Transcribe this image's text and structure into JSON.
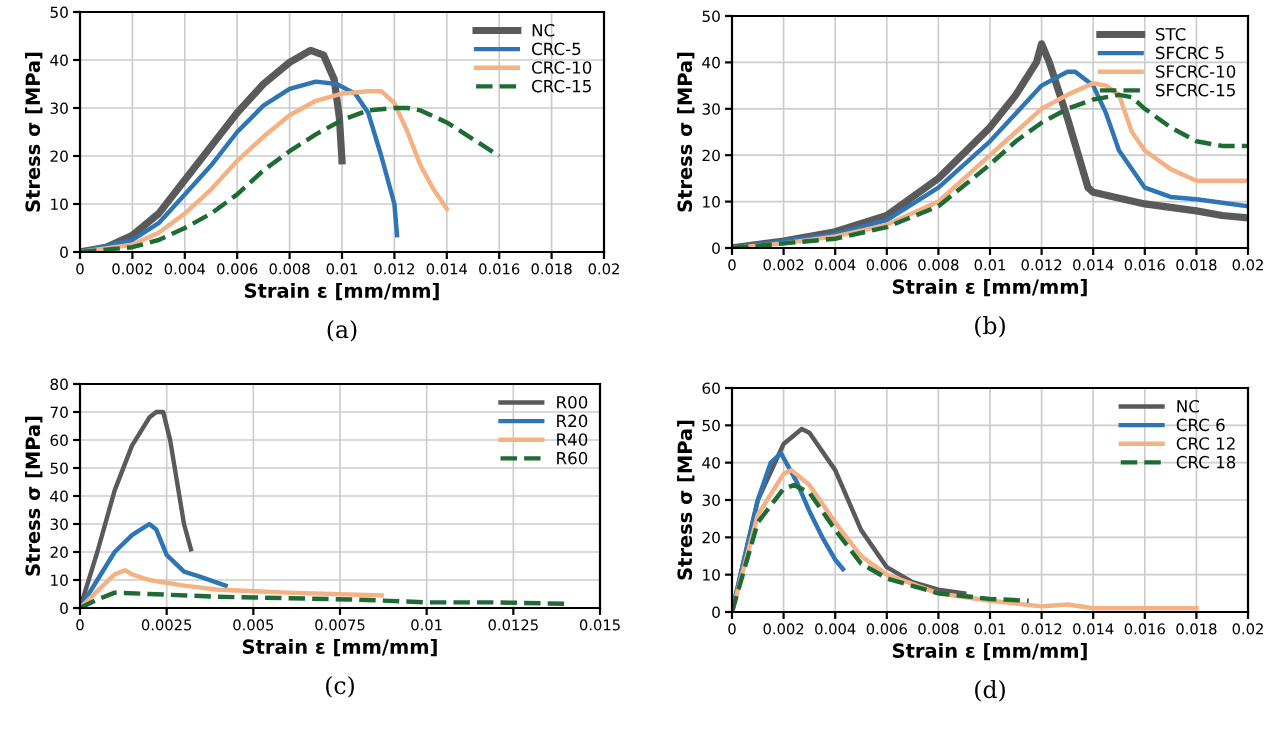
{
  "chart_data": [
    {
      "type": "line",
      "xlabel": "Strain ε [mm/mm]",
      "ylabel": "Stress σ [MPa]",
      "annotations": [
        "(a)"
      ],
      "xlim": [
        0,
        0.02
      ],
      "ylim": [
        0,
        50
      ],
      "xticks": [
        0,
        0.002,
        0.004,
        0.006,
        0.008,
        0.01,
        0.012,
        0.014,
        0.016,
        0.018,
        0.02
      ],
      "yticks": [
        0,
        10,
        20,
        30,
        40,
        50
      ],
      "grid": true,
      "legend": "top right",
      "series": [
        {
          "name": "NC",
          "color": "#5a5a5a",
          "line_style": "solid",
          "x": [
            0,
            0.001,
            0.002,
            0.003,
            0.004,
            0.005,
            0.006,
            0.007,
            0.008,
            0.0088,
            0.0093,
            0.0097,
            0.0099,
            0.01
          ],
          "values": [
            0,
            1,
            3.5,
            8,
            15,
            22,
            29,
            35,
            39.5,
            42,
            41,
            36,
            28,
            19
          ]
        },
        {
          "name": "CRC-5",
          "color": "#2e75b6",
          "line_style": "solid",
          "x": [
            0,
            0.002,
            0.003,
            0.004,
            0.005,
            0.006,
            0.007,
            0.008,
            0.009,
            0.0098,
            0.0105,
            0.011,
            0.0115,
            0.012,
            0.0121
          ],
          "values": [
            0,
            2.5,
            6,
            12,
            18,
            25,
            30.5,
            34,
            35.5,
            35,
            33,
            29,
            20,
            10,
            3.5
          ]
        },
        {
          "name": "CRC-10",
          "color": "#f4b183",
          "line_style": "solid",
          "x": [
            0,
            0.002,
            0.003,
            0.004,
            0.005,
            0.006,
            0.007,
            0.008,
            0.009,
            0.01,
            0.011,
            0.0115,
            0.012,
            0.0125,
            0.013,
            0.0135,
            0.014
          ],
          "values": [
            0,
            1.5,
            4,
            8,
            13,
            19,
            24,
            28.5,
            31.5,
            33,
            33.5,
            33.5,
            31,
            25,
            18,
            13,
            9
          ]
        },
        {
          "name": "CRC-15",
          "color": "#1e6b34",
          "line_style": "dashed",
          "x": [
            0,
            0.002,
            0.003,
            0.004,
            0.005,
            0.006,
            0.007,
            0.008,
            0.009,
            0.01,
            0.011,
            0.012,
            0.0125,
            0.013,
            0.014,
            0.015,
            0.016
          ],
          "values": [
            0,
            1,
            2.5,
            5,
            8,
            12,
            17,
            21,
            24.5,
            27.5,
            29.5,
            30,
            30,
            29.5,
            27,
            23.5,
            20
          ]
        }
      ]
    },
    {
      "type": "line",
      "xlabel": "Strain ε [mm/mm]",
      "ylabel": "Stress σ [MPa]",
      "annotations": [
        "(b)"
      ],
      "xlim": [
        0,
        0.02
      ],
      "ylim": [
        0,
        50
      ],
      "xticks": [
        0,
        0.002,
        0.004,
        0.006,
        0.008,
        0.01,
        0.012,
        0.014,
        0.016,
        0.018,
        0.02
      ],
      "yticks": [
        0,
        10,
        20,
        30,
        40,
        50
      ],
      "grid": true,
      "legend": "top right",
      "series": [
        {
          "name": "STC",
          "color": "#5a5a5a",
          "line_style": "solid",
          "x": [
            0,
            0.002,
            0.004,
            0.006,
            0.008,
            0.01,
            0.011,
            0.0118,
            0.012,
            0.0123,
            0.013,
            0.0138,
            0.014,
            0.016,
            0.018,
            0.019,
            0.02
          ],
          "values": [
            0,
            1.5,
            3.5,
            7,
            15,
            26,
            33,
            40,
            44,
            40,
            28,
            13,
            12,
            9.5,
            8,
            7,
            6.5
          ]
        },
        {
          "name": "SFCRC 5",
          "color": "#2e75b6",
          "line_style": "solid",
          "x": [
            0,
            0.002,
            0.004,
            0.006,
            0.008,
            0.01,
            0.011,
            0.012,
            0.013,
            0.0133,
            0.014,
            0.0145,
            0.015,
            0.016,
            0.017,
            0.018,
            0.02
          ],
          "values": [
            0,
            1.5,
            3,
            6,
            13,
            23,
            29,
            35,
            38,
            38,
            35,
            29,
            21,
            13,
            11,
            10.5,
            9
          ]
        },
        {
          "name": "SFCRC-10",
          "color": "#f4b183",
          "line_style": "solid",
          "x": [
            0,
            0.002,
            0.004,
            0.006,
            0.008,
            0.01,
            0.011,
            0.012,
            0.013,
            0.014,
            0.0145,
            0.015,
            0.0155,
            0.016,
            0.017,
            0.018,
            0.02
          ],
          "values": [
            0,
            1,
            2.5,
            5,
            10,
            20,
            25,
            30,
            33,
            35.5,
            35,
            33,
            25,
            21,
            17,
            14.5,
            14.5
          ]
        },
        {
          "name": "SFCRC-15",
          "color": "#1e6b34",
          "line_style": "dashed",
          "x": [
            0,
            0.002,
            0.004,
            0.006,
            0.008,
            0.01,
            0.011,
            0.012,
            0.013,
            0.014,
            0.015,
            0.0155,
            0.016,
            0.017,
            0.018,
            0.019,
            0.02
          ],
          "values": [
            0,
            1,
            2,
            4.5,
            9,
            18,
            23,
            27,
            30,
            32,
            33,
            32.5,
            30,
            26,
            23,
            22,
            22
          ]
        }
      ]
    },
    {
      "type": "line",
      "xlabel": "Strain ε [mm/mm]",
      "ylabel": "Stress σ [MPa]",
      "annotations": [
        "(c)"
      ],
      "xlim": [
        0,
        0.015
      ],
      "ylim": [
        0,
        80
      ],
      "xticks": [
        0,
        0.0025,
        0.005,
        0.0075,
        0.01,
        0.0125,
        0.015
      ],
      "yticks": [
        0,
        10,
        20,
        30,
        40,
        50,
        60,
        70,
        80
      ],
      "grid": true,
      "legend": "top right",
      "series": [
        {
          "name": "R00",
          "color": "#5a5a5a",
          "line_style": "solid",
          "x": [
            0,
            0.0005,
            0.001,
            0.0015,
            0.002,
            0.0022,
            0.0024,
            0.0026,
            0.0028,
            0.003,
            0.0032
          ],
          "values": [
            0,
            20,
            42,
            58,
            68,
            70,
            70,
            60,
            45,
            30,
            21
          ]
        },
        {
          "name": "R20",
          "color": "#2e75b6",
          "line_style": "solid",
          "x": [
            0,
            0.0005,
            0.001,
            0.0015,
            0.002,
            0.0022,
            0.0025,
            0.003,
            0.0035,
            0.0042
          ],
          "values": [
            0,
            10,
            20,
            26,
            30,
            28,
            19,
            13,
            11,
            8
          ]
        },
        {
          "name": "R40",
          "color": "#f4b183",
          "line_style": "solid",
          "x": [
            0,
            0.0005,
            0.001,
            0.0013,
            0.0015,
            0.002,
            0.003,
            0.004,
            0.006,
            0.0087
          ],
          "values": [
            0,
            6,
            12,
            13.5,
            12,
            10,
            8,
            6.5,
            5.5,
            4.5
          ]
        },
        {
          "name": "R60",
          "color": "#1e6b34",
          "line_style": "dashed",
          "x": [
            0,
            0.0005,
            0.001,
            0.002,
            0.004,
            0.006,
            0.008,
            0.01,
            0.012,
            0.014
          ],
          "values": [
            0,
            3,
            5.5,
            5,
            4,
            3.5,
            3,
            2,
            2,
            1.5
          ]
        }
      ]
    },
    {
      "type": "line",
      "xlabel": "Strain ε [mm/mm]",
      "ylabel": "Stress σ [MPa]",
      "annotations": [
        "(d)"
      ],
      "xlim": [
        0,
        0.02
      ],
      "ylim": [
        0,
        60
      ],
      "xticks": [
        0,
        0.002,
        0.004,
        0.006,
        0.008,
        0.01,
        0.012,
        0.014,
        0.016,
        0.018,
        0.02
      ],
      "yticks": [
        0,
        10,
        20,
        30,
        40,
        50,
        60
      ],
      "grid": true,
      "legend": "top right",
      "series": [
        {
          "name": "NC",
          "color": "#5a5a5a",
          "line_style": "solid",
          "x": [
            0,
            0.001,
            0.002,
            0.0027,
            0.003,
            0.004,
            0.005,
            0.006,
            0.007,
            0.008,
            0.009
          ],
          "values": [
            0,
            30,
            45,
            49,
            48,
            38,
            22,
            12,
            8,
            6,
            5
          ]
        },
        {
          "name": "CRC 6",
          "color": "#2e75b6",
          "line_style": "solid",
          "x": [
            0,
            0.001,
            0.0015,
            0.0019,
            0.0025,
            0.003,
            0.0035,
            0.004,
            0.0043
          ],
          "values": [
            0,
            30,
            40,
            42.5,
            35,
            27,
            20,
            14,
            11.5
          ]
        },
        {
          "name": "CRC 12",
          "color": "#f4b183",
          "line_style": "solid",
          "x": [
            0,
            0.001,
            0.002,
            0.0023,
            0.003,
            0.004,
            0.005,
            0.006,
            0.008,
            0.01,
            0.012,
            0.013,
            0.014,
            0.018
          ],
          "values": [
            0,
            26,
            37,
            38,
            34,
            24,
            15,
            10,
            5,
            3,
            1.5,
            2,
            1,
            1
          ]
        },
        {
          "name": "CRC 18",
          "color": "#1e6b34",
          "line_style": "dashed",
          "x": [
            0,
            0.001,
            0.002,
            0.0024,
            0.003,
            0.004,
            0.005,
            0.006,
            0.008,
            0.01,
            0.0115
          ],
          "values": [
            0,
            24,
            33,
            34,
            32,
            22,
            13,
            9,
            5,
            3.5,
            3
          ]
        }
      ]
    }
  ]
}
